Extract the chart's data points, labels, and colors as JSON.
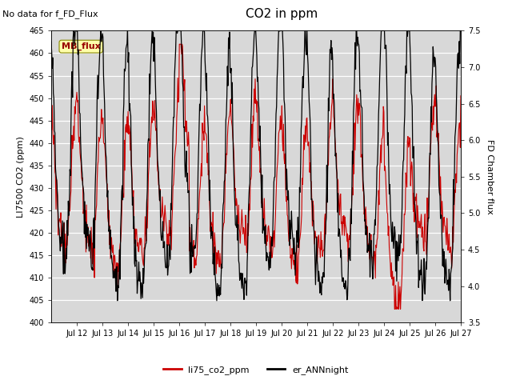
{
  "title": "CO2 in ppm",
  "ylabel_left": "LI7500 CO2 (ppm)",
  "ylabel_right": "FD Chamber flux",
  "no_data_text": "No data for f_FD_Flux",
  "mb_flux_label": "MB_flux",
  "legend_labels": [
    "li75_co2_ppm",
    "er_ANNnight"
  ],
  "ylim_left": [
    400,
    465
  ],
  "ylim_right": [
    3.5,
    7.5
  ],
  "xlim_days": [
    11.0,
    27.0
  ],
  "x_tick_positions": [
    12,
    13,
    14,
    15,
    16,
    17,
    18,
    19,
    20,
    21,
    22,
    23,
    24,
    25,
    26,
    27
  ],
  "x_tick_labels": [
    "Jul 12",
    "Jul 13",
    "Jul 14",
    "Jul 15",
    "Jul 16",
    "Jul 17",
    "Jul 18",
    "Jul 19",
    "Jul 20",
    "Jul 21",
    "Jul 22",
    "Jul 23",
    "Jul 24",
    "Jul 25",
    "Jul 26",
    "Jul 27"
  ],
  "left_ticks": [
    400,
    405,
    410,
    415,
    420,
    425,
    430,
    435,
    440,
    445,
    450,
    455,
    460,
    465
  ],
  "right_ticks": [
    3.5,
    4.0,
    4.5,
    5.0,
    5.5,
    6.0,
    6.5,
    7.0,
    7.5
  ],
  "bg_color": "#ffffff",
  "plot_bg_color": "#d8d8d8",
  "grid_color": "#ffffff",
  "red_color": "#cc0000",
  "black_color": "#000000",
  "title_fontsize": 11,
  "axis_label_fontsize": 8,
  "tick_fontsize": 7,
  "legend_fontsize": 8,
  "note_fontsize": 8,
  "mb_flux_fontsize": 8,
  "n_points": 768
}
